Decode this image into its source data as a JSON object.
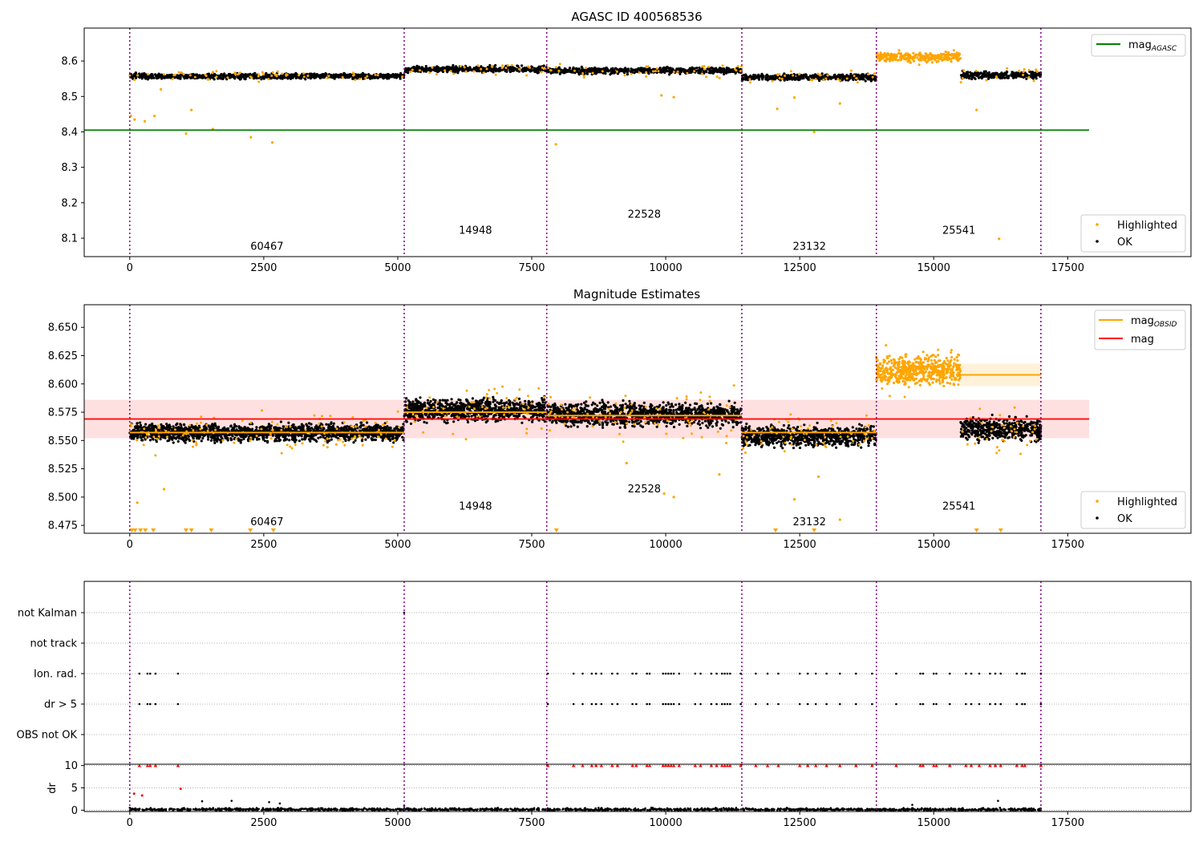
{
  "chart_data": [
    {
      "type": "scatter",
      "title": "AGASC ID 400568536",
      "xlim": [
        -850,
        19800
      ],
      "ylim": [
        8.048,
        8.693
      ],
      "xticks": [
        0,
        2500,
        5000,
        7500,
        10000,
        12500,
        15000,
        17500
      ],
      "yticks": [
        8.1,
        8.2,
        8.3,
        8.4,
        8.5,
        8.6
      ],
      "obs_boundaries": [
        0,
        5120,
        7780,
        11420,
        13930,
        17000
      ],
      "obs_labels": [
        {
          "text": "60467",
          "x": 2560,
          "y": 8.067
        },
        {
          "text": "14948",
          "x": 6450,
          "y": 8.113
        },
        {
          "text": "22528",
          "x": 9600,
          "y": 8.158
        },
        {
          "text": "23132",
          "x": 12680,
          "y": 8.067
        },
        {
          "text": "25541",
          "x": 15470,
          "y": 8.113
        }
      ],
      "mag_agasc": {
        "value": 8.405,
        "x_range": [
          -850,
          17900
        ]
      },
      "segments": [
        {
          "x_range": [
            0,
            5120
          ],
          "mag": 8.557,
          "spread": 0.006,
          "highlighted": false
        },
        {
          "x_range": [
            5120,
            7780
          ],
          "mag": 8.577,
          "spread": 0.007,
          "highlighted": false
        },
        {
          "x_range": [
            7780,
            11420
          ],
          "mag": 8.573,
          "spread": 0.007,
          "highlighted": false
        },
        {
          "x_range": [
            11420,
            13930
          ],
          "mag": 8.554,
          "spread": 0.007,
          "highlighted": false
        },
        {
          "x_range": [
            13930,
            15500
          ],
          "mag": 8.612,
          "spread": 0.01,
          "highlighted": true
        },
        {
          "x_range": [
            15500,
            17000
          ],
          "mag": 8.56,
          "spread": 0.008,
          "highlighted": false
        }
      ],
      "outliers": [
        [
          20,
          8.445
        ],
        [
          90,
          8.435
        ],
        [
          280,
          8.43
        ],
        [
          460,
          8.445
        ],
        [
          580,
          8.52
        ],
        [
          1050,
          8.395
        ],
        [
          1150,
          8.462
        ],
        [
          1550,
          8.408
        ],
        [
          2260,
          8.385
        ],
        [
          2660,
          8.37
        ],
        [
          7950,
          8.365
        ],
        [
          9920,
          8.503
        ],
        [
          10150,
          8.498
        ],
        [
          12080,
          8.465
        ],
        [
          12400,
          8.497
        ],
        [
          12770,
          8.4
        ],
        [
          13250,
          8.48
        ],
        [
          15800,
          8.462
        ],
        [
          16220,
          8.098
        ]
      ],
      "legends": {
        "line": [
          {
            "label": "mag",
            "subscript": "AGASC",
            "color": "#008000"
          }
        ],
        "points": [
          "Highlighted",
          "OK"
        ]
      }
    },
    {
      "type": "scatter",
      "title": "Magnitude Estimates",
      "xlim": [
        -850,
        19800
      ],
      "ylim": [
        8.468,
        8.67
      ],
      "xticks": [
        0,
        2500,
        5000,
        7500,
        10000,
        12500,
        15000,
        17500
      ],
      "yticks": [
        8.475,
        8.5,
        8.525,
        8.55,
        8.575,
        8.6,
        8.625,
        8.65
      ],
      "ytick_labels": [
        "8.475",
        "8.500",
        "8.525",
        "8.550",
        "8.575",
        "8.600",
        "8.625",
        "8.650"
      ],
      "obs_labels": [
        {
          "text": "60467",
          "x": 2560,
          "y": 8.475
        },
        {
          "text": "14948",
          "x": 6450,
          "y": 8.489
        },
        {
          "text": "22528",
          "x": 9600,
          "y": 8.504
        },
        {
          "text": "23132",
          "x": 12680,
          "y": 8.475
        },
        {
          "text": "25541",
          "x": 15470,
          "y": 8.489
        }
      ],
      "mag": {
        "value": 8.569,
        "band": [
          8.552,
          8.586
        ],
        "x_range": [
          -850,
          17900
        ]
      },
      "mag_obsid": [
        {
          "x_range": [
            0,
            5120
          ],
          "value": 8.557
        },
        {
          "x_range": [
            5120,
            7780
          ],
          "value": 8.575
        },
        {
          "x_range": [
            7780,
            11420
          ],
          "value": 8.572
        },
        {
          "x_range": [
            11420,
            13930
          ],
          "value": 8.557
        },
        {
          "x_range": [
            13930,
            17000
          ],
          "value": 8.608,
          "band": [
            8.598,
            8.618
          ]
        }
      ],
      "segments": [
        {
          "x_range": [
            0,
            5120
          ],
          "mag": 8.557,
          "spread": 0.006,
          "highlighted": false
        },
        {
          "x_range": [
            5120,
            7780
          ],
          "mag": 8.577,
          "spread": 0.008,
          "highlighted": false
        },
        {
          "x_range": [
            7780,
            11420
          ],
          "mag": 8.573,
          "spread": 0.008,
          "highlighted": false
        },
        {
          "x_range": [
            11420,
            13930
          ],
          "mag": 8.554,
          "spread": 0.007,
          "highlighted": false
        },
        {
          "x_range": [
            13930,
            15500
          ],
          "mag": 8.612,
          "spread": 0.01,
          "highlighted": true
        },
        {
          "x_range": [
            15500,
            17000
          ],
          "mag": 8.56,
          "spread": 0.008,
          "highlighted": false
        }
      ],
      "outliers": [
        [
          140,
          8.495
        ],
        [
          640,
          8.507
        ],
        [
          9270,
          8.53
        ],
        [
          9970,
          8.503
        ],
        [
          10150,
          8.5
        ],
        [
          11000,
          8.52
        ],
        [
          12400,
          8.498
        ],
        [
          12850,
          8.518
        ],
        [
          13250,
          8.48
        ]
      ],
      "floor_markers": [
        40,
        100,
        200,
        290,
        440,
        1050,
        1150,
        1520,
        2250,
        2680,
        7960,
        12050,
        12770,
        15800,
        16250
      ],
      "legends": {
        "line": [
          {
            "label": "mag",
            "subscript": "OBSID",
            "color": "#ffa500"
          },
          {
            "label": "mag",
            "subscript": "",
            "color": "#ff0000"
          }
        ],
        "points": [
          "Highlighted",
          "OK"
        ]
      }
    },
    {
      "type": "scatter",
      "title": "",
      "xlim": [
        -850,
        19800
      ],
      "categories": [
        "not Kalman",
        "not track",
        "Ion. rad.",
        "dr > 5",
        "OBS not OK"
      ],
      "flag_points": {
        "not Kalman": [
          5120
        ],
        "not track": [],
        "Ion. rad.": [
          180,
          330,
          380,
          480,
          900,
          7800,
          8280,
          8450,
          8620,
          8700,
          8800,
          9000,
          9100,
          9380,
          9450,
          9650,
          9700,
          9950,
          10000,
          10050,
          10100,
          10150,
          10250,
          10550,
          10650,
          10850,
          10950,
          11050,
          11100,
          11150,
          11200,
          11400,
          11680,
          11900,
          12100,
          12500,
          12650,
          12800,
          13000,
          13250,
          13550,
          13850,
          14300,
          14750,
          14800,
          15000,
          15050,
          15300,
          15600,
          15700,
          15850,
          16050,
          16150,
          16250,
          16550,
          16650,
          16700,
          17000
        ],
        "dr > 5": [
          180,
          330,
          380,
          480,
          900,
          7800,
          8280,
          8450,
          8620,
          8700,
          8800,
          9000,
          9100,
          9380,
          9450,
          9650,
          9700,
          9950,
          10000,
          10050,
          10100,
          10150,
          10250,
          10550,
          10650,
          10850,
          10950,
          11050,
          11100,
          11150,
          11200,
          11400,
          11680,
          11900,
          12100,
          12500,
          12650,
          12800,
          13000,
          13250,
          13550,
          13850,
          14300,
          14750,
          14800,
          15000,
          15050,
          15300,
          15600,
          15700,
          15850,
          16050,
          16150,
          16250,
          16550,
          16650,
          16700,
          17000
        ],
        "OBS not OK": []
      }
    },
    {
      "type": "scatter",
      "title": "",
      "ylabel": "dr",
      "xlim": [
        -850,
        19800
      ],
      "ylim": [
        -0.3,
        10.3
      ],
      "xticks": [
        0,
        2500,
        5000,
        7500,
        10000,
        12500,
        15000,
        17500
      ],
      "yticks": [
        0,
        5,
        10
      ],
      "clipped_value": 10,
      "red_points": [
        [
          80,
          3.7
        ],
        [
          230,
          3.3
        ],
        [
          950,
          4.8
        ]
      ],
      "scatter_black": [
        [
          1350,
          2.0
        ],
        [
          1900,
          2.1
        ],
        [
          2600,
          1.8
        ],
        [
          2800,
          1.5
        ],
        [
          5120,
          1.0
        ],
        [
          14600,
          1.2
        ],
        [
          16200,
          2.1
        ]
      ]
    }
  ]
}
